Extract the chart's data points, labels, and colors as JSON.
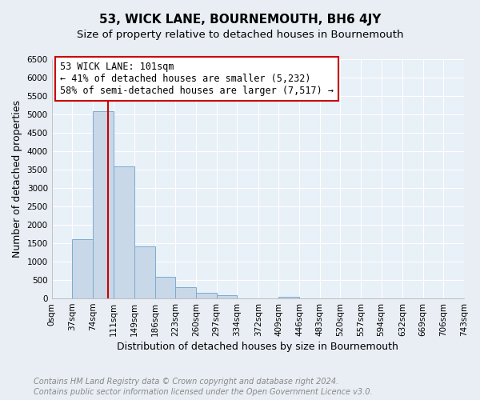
{
  "title": "53, WICK LANE, BOURNEMOUTH, BH6 4JY",
  "subtitle": "Size of property relative to detached houses in Bournemouth",
  "xlabel": "Distribution of detached houses by size in Bournemouth",
  "ylabel": "Number of detached properties",
  "footer_lines": [
    "Contains HM Land Registry data © Crown copyright and database right 2024.",
    "Contains public sector information licensed under the Open Government Licence v3.0."
  ],
  "bin_edges": [
    0,
    37,
    74,
    111,
    149,
    186,
    223,
    260,
    297,
    334,
    372,
    409,
    446,
    483,
    520,
    557,
    594,
    632,
    669,
    706,
    743
  ],
  "bin_labels": [
    "0sqm",
    "37sqm",
    "74sqm",
    "111sqm",
    "149sqm",
    "186sqm",
    "223sqm",
    "260sqm",
    "297sqm",
    "334sqm",
    "372sqm",
    "409sqm",
    "446sqm",
    "483sqm",
    "520sqm",
    "557sqm",
    "594sqm",
    "632sqm",
    "669sqm",
    "706sqm",
    "743sqm"
  ],
  "bar_heights": [
    0,
    1620,
    5080,
    3580,
    1420,
    580,
    300,
    145,
    80,
    0,
    0,
    50,
    0,
    0,
    0,
    0,
    0,
    0,
    0,
    0
  ],
  "bar_color": "#c8d8e8",
  "bar_edge_color": "#7baad0",
  "bar_linewidth": 0.7,
  "ylim": [
    0,
    6500
  ],
  "yticks": [
    0,
    500,
    1000,
    1500,
    2000,
    2500,
    3000,
    3500,
    4000,
    4500,
    5000,
    5500,
    6000,
    6500
  ],
  "vline_x": 101,
  "vline_color": "#cc0000",
  "annotation_line1": "53 WICK LANE: 101sqm",
  "annotation_line2": "← 41% of detached houses are smaller (5,232)",
  "annotation_line3": "58% of semi-detached houses are larger (7,517) →",
  "annotation_box_facecolor": "#ffffff",
  "annotation_box_edgecolor": "#cc0000",
  "fig_background_color": "#e8eef4",
  "axes_background_color": "#e8f0f8",
  "grid_color": "#ffffff",
  "title_fontsize": 11,
  "subtitle_fontsize": 9.5,
  "axis_label_fontsize": 9,
  "tick_fontsize": 7.5,
  "annotation_fontsize": 8.5,
  "footer_fontsize": 7
}
